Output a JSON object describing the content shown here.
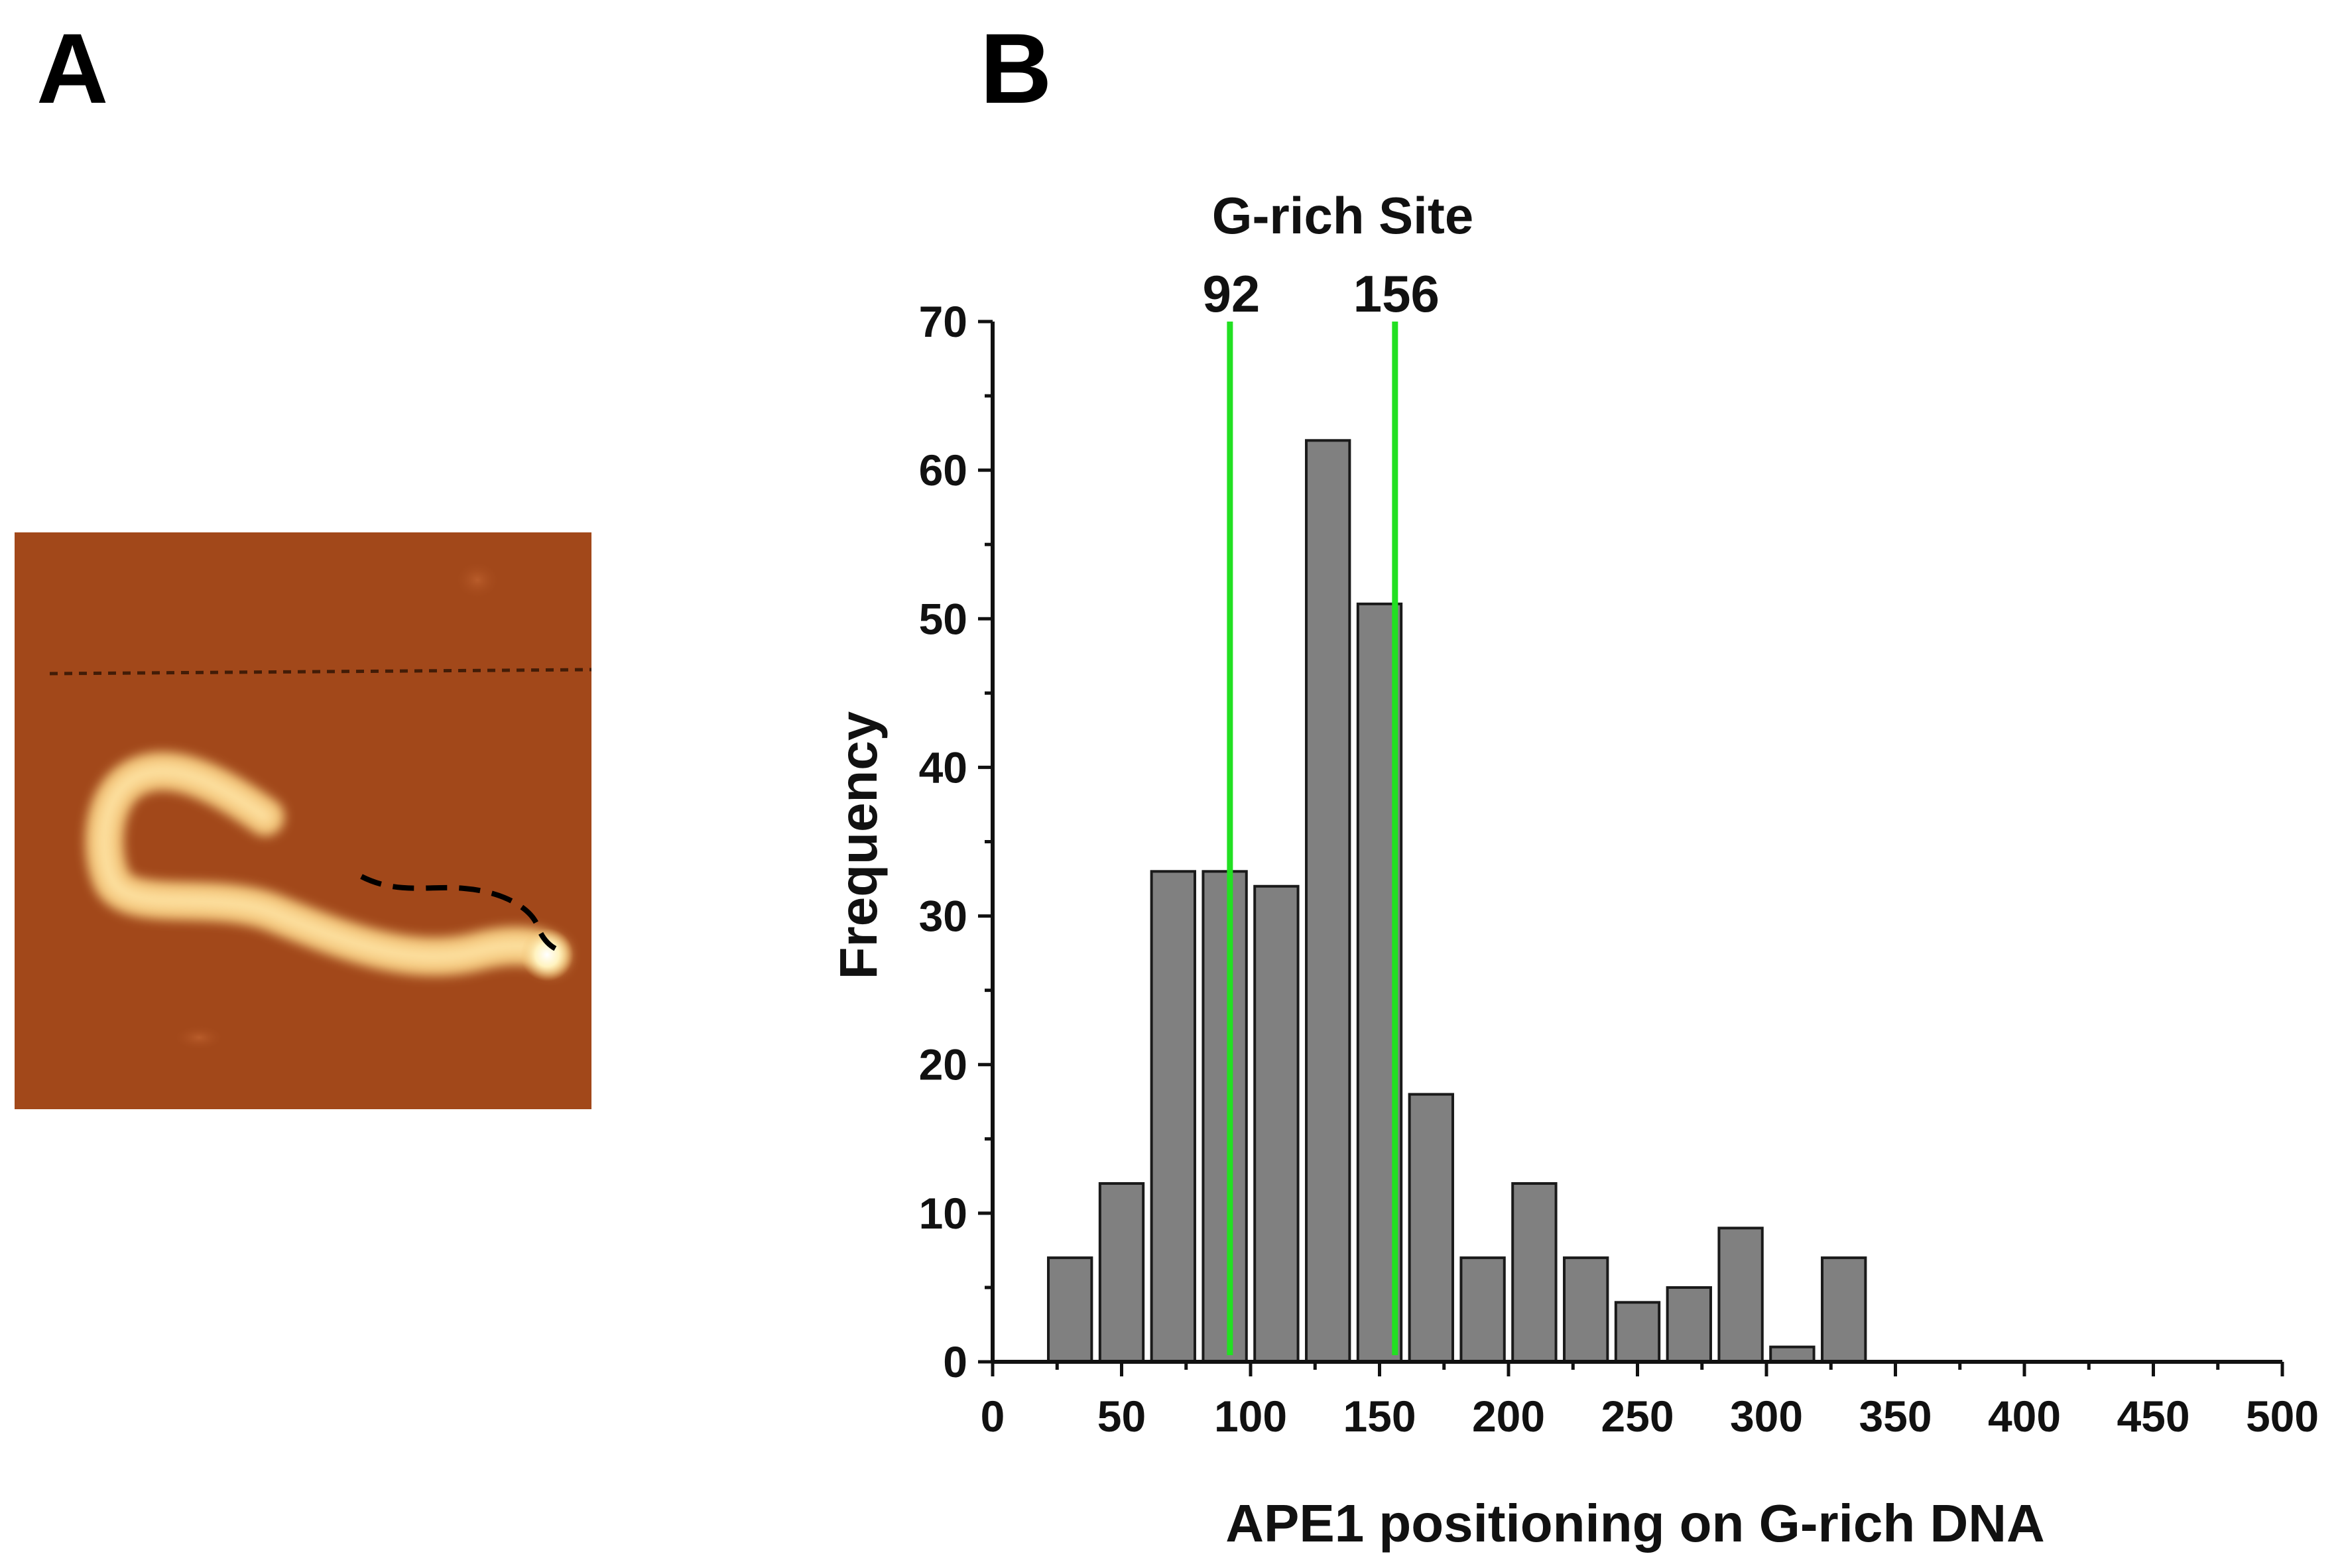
{
  "panels": {
    "a_label": "A",
    "b_label": "B"
  },
  "afm_image": {
    "description_icon": "afm-dna-image-icon",
    "colors": {
      "background": "#a2481a",
      "strand": "#f0c070"
    }
  },
  "chart_data": {
    "type": "bar",
    "title": "",
    "xlabel": "APE1 positioning on G-rich DNA",
    "ylabel": "Frequency",
    "xlim": [
      0,
      500
    ],
    "ylim": [
      0,
      70
    ],
    "xticks": [
      0,
      50,
      100,
      150,
      200,
      250,
      300,
      350,
      400,
      450,
      500
    ],
    "yticks": [
      0,
      10,
      20,
      30,
      40,
      50,
      60,
      70
    ],
    "bin_width": 20,
    "bins": [
      {
        "center": 30,
        "value": 7
      },
      {
        "center": 50,
        "value": 12
      },
      {
        "center": 70,
        "value": 33
      },
      {
        "center": 90,
        "value": 33
      },
      {
        "center": 110,
        "value": 32
      },
      {
        "center": 130,
        "value": 62
      },
      {
        "center": 150,
        "value": 51
      },
      {
        "center": 170,
        "value": 18
      },
      {
        "center": 190,
        "value": 7
      },
      {
        "center": 210,
        "value": 12
      },
      {
        "center": 230,
        "value": 7
      },
      {
        "center": 250,
        "value": 4
      },
      {
        "center": 270,
        "value": 5
      },
      {
        "center": 290,
        "value": 9
      },
      {
        "center": 310,
        "value": 1
      },
      {
        "center": 330,
        "value": 7
      }
    ],
    "annotation": {
      "title": "G-rich Site",
      "sites": [
        {
          "position": 92,
          "label": "92"
        },
        {
          "position": 156,
          "label": "156"
        }
      ],
      "color": "#22e022"
    },
    "bar_color": "#808080"
  }
}
